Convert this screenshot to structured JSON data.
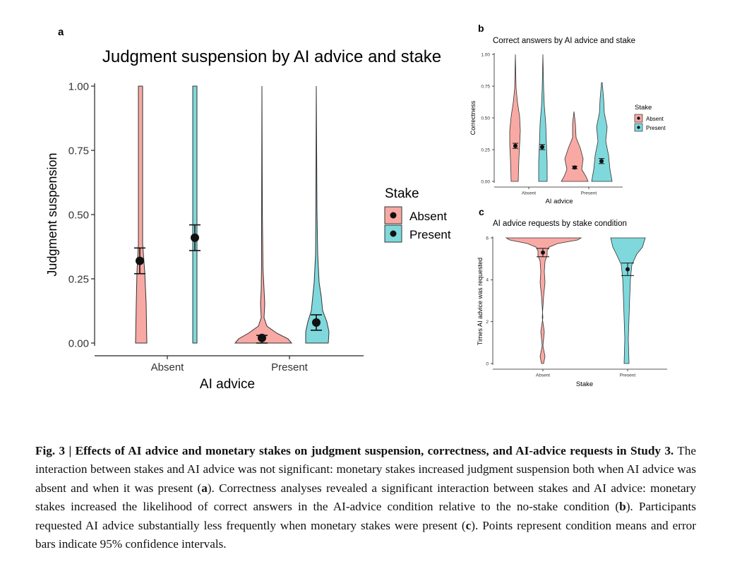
{
  "colors": {
    "absent": "#F8A9A4",
    "present": "#7FD8DC",
    "outline": "#333333",
    "point": "#111111"
  },
  "panel_a": {
    "letter": "a",
    "chart_data": {
      "type": "violin",
      "title": "Judgment suspension by AI advice and stake",
      "xlabel": "AI advice",
      "ylabel": "Judgment suspension",
      "categories": [
        "Absent",
        "Present"
      ],
      "yticks": [
        "0.00",
        "0.25",
        "0.50",
        "0.75",
        "1.00"
      ],
      "ylim": [
        0,
        1
      ],
      "legend": {
        "title": "Stake",
        "entries": [
          "Absent",
          "Present"
        ],
        "placement": "right"
      },
      "series": [
        {
          "name": "Absent",
          "means": [
            0.32,
            0.02
          ],
          "ci_low": [
            0.27,
            0.0
          ],
          "ci_high": [
            0.37,
            0.03
          ]
        },
        {
          "name": "Present",
          "means": [
            0.41,
            0.08
          ],
          "ci_low": [
            0.36,
            0.05
          ],
          "ci_high": [
            0.46,
            0.11
          ]
        }
      ]
    }
  },
  "panel_b": {
    "letter": "b",
    "chart_data": {
      "type": "violin",
      "title": "Correct answers by AI advice and stake",
      "xlabel": "AI advice",
      "ylabel": "Correctness",
      "categories": [
        "Absent",
        "Present"
      ],
      "yticks": [
        "0.00",
        "0.25",
        "0.50",
        "0.75",
        "1.00"
      ],
      "ylim": [
        0,
        1
      ],
      "legend": {
        "title": "Stake",
        "entries": [
          "Absent",
          "Present"
        ],
        "placement": "right"
      },
      "series": [
        {
          "name": "Absent",
          "means": [
            0.28,
            0.11
          ],
          "ci_low": [
            0.26,
            0.1
          ],
          "ci_high": [
            0.3,
            0.12
          ]
        },
        {
          "name": "Present",
          "means": [
            0.27,
            0.16
          ],
          "ci_low": [
            0.25,
            0.14
          ],
          "ci_high": [
            0.29,
            0.18
          ]
        }
      ]
    }
  },
  "panel_c": {
    "letter": "c",
    "chart_data": {
      "type": "violin",
      "title": "AI advice requests by stake condition",
      "xlabel": "Stake",
      "ylabel": "Times AI advice was requested",
      "categories": [
        "Absent",
        "Present"
      ],
      "yticks": [
        "0",
        "2",
        "4",
        "6"
      ],
      "ylim": [
        0,
        6
      ],
      "means": [
        5.3,
        4.5
      ],
      "ci_low": [
        5.1,
        4.2
      ],
      "ci_high": [
        5.5,
        4.8
      ]
    }
  },
  "caption": {
    "bold": "Fig. 3 | Effects of AI advice and monetary stakes on judgment suspension, correctness, and AI-advice requests in Study 3.",
    "p1": " The interaction between stakes and AI advice was not significant: monetary stakes increased judgment suspension both when AI advice was absent and when it was present (",
    "a": "a",
    "p2": "). Correctness analyses revealed a significant interaction between stakes and AI advice: monetary stakes increased the likelihood of correct answers in the AI-advice condition relative to the no-stake condition (",
    "b": "b",
    "p3": "). Participants requested AI advice substantially less frequently when monetary stakes were present (",
    "c": "c",
    "p4": "). Points represent condition means and error bars indicate 95% confidence intervals."
  }
}
